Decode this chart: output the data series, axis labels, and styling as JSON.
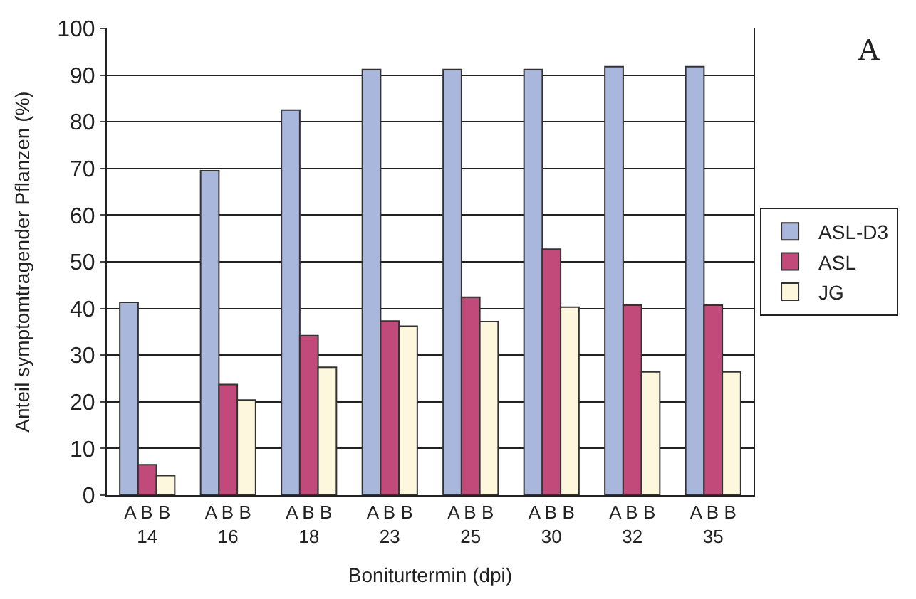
{
  "chart_data": {
    "type": "bar",
    "xlabel": "Boniturtermin (dpi)",
    "ylabel": "Anteil symptomtragender Pflanzen (%)",
    "categories": [
      "A B B\n14",
      "A B B\n16",
      "A B B\n18",
      "A B B\n23",
      "A B B\n25",
      "A B B\n30",
      "A B B\n32",
      "A B B\n35"
    ],
    "series": [
      {
        "name": "ASL-D3",
        "color": "#a9b7dc",
        "values": [
          41.3,
          69.5,
          82.5,
          91.2,
          91.2,
          91.2,
          91.8,
          91.8
        ]
      },
      {
        "name": "ASL",
        "color": "#c24a7a",
        "values": [
          6.5,
          23.7,
          34.2,
          37.3,
          42.4,
          52.7,
          40.7,
          40.7
        ]
      },
      {
        "name": "JG",
        "color": "#fcf7dd",
        "values": [
          4.2,
          20.4,
          27.4,
          36.2,
          37.2,
          40.3,
          26.4,
          26.4
        ]
      }
    ],
    "ylim": [
      0,
      100
    ],
    "yticks": [
      0,
      10,
      20,
      30,
      40,
      50,
      60,
      70,
      80,
      90,
      100
    ],
    "grid": "y",
    "legend": "right",
    "annotations": [
      "A"
    ]
  }
}
